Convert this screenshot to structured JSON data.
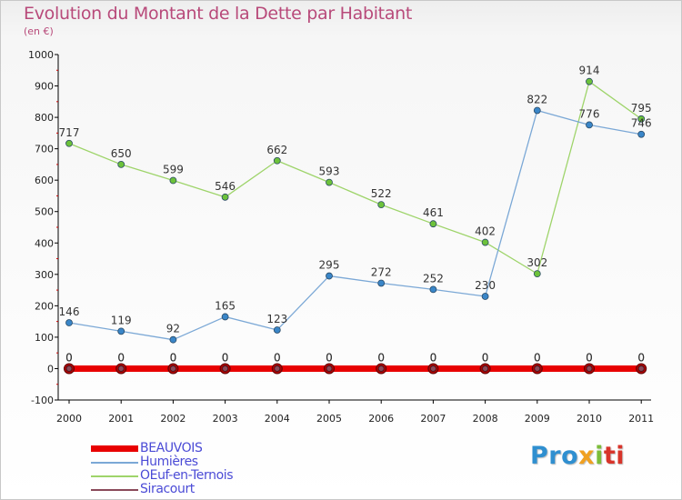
{
  "title": "Evolution du Montant de la Dette par Habitant",
  "subtitle": "(en €)",
  "logo": [
    "Pro",
    "x",
    "i",
    "ti"
  ],
  "colors": {
    "title": "#b84a7a",
    "legend_text": "#4b4bd6"
  },
  "chart_data": {
    "type": "line",
    "title": "Evolution du Montant de la Dette par Habitant",
    "ylabel": "(en €)",
    "xlabel": "",
    "x": [
      "2000",
      "2001",
      "2002",
      "2003",
      "2004",
      "2005",
      "2006",
      "2007",
      "2008",
      "2009",
      "2010",
      "2011"
    ],
    "ylim": [
      -100,
      1000
    ],
    "yticks": [
      "-100",
      "0",
      "100",
      "200",
      "300",
      "400",
      "500",
      "600",
      "700",
      "800",
      "900",
      "1000"
    ],
    "grid": false,
    "legend_position": "bottom-left",
    "series": [
      {
        "name": "BEAUVOIS",
        "color": "#e80000",
        "marker": "#e00000",
        "values": [
          0,
          0,
          0,
          0,
          0,
          0,
          0,
          0,
          0,
          0,
          0,
          0
        ],
        "labels": [
          "0",
          "0",
          "0",
          "0",
          "0",
          "0",
          "0",
          "0",
          "0",
          "0",
          "0",
          "0"
        ]
      },
      {
        "name": "Humières",
        "color": "#7ba8d6",
        "marker": "#3a86c8",
        "values": [
          146,
          119,
          92,
          165,
          123,
          295,
          272,
          252,
          230,
          822,
          776,
          746
        ],
        "labels": [
          "146",
          "119",
          "92",
          "165",
          "123",
          "295",
          "272",
          "252",
          "230",
          "822",
          "776",
          "746"
        ]
      },
      {
        "name": "OEuf-en-Ternois",
        "color": "#9ed46a",
        "marker": "#6cc23a",
        "values": [
          717,
          650,
          599,
          546,
          662,
          593,
          522,
          461,
          402,
          302,
          914,
          795
        ],
        "labels": [
          "717",
          "650",
          "599",
          "546",
          "662",
          "593",
          "522",
          "461",
          "402",
          "302",
          "914",
          "795"
        ]
      },
      {
        "name": "Siracourt",
        "color": "#8a4a5a",
        "marker": "#8a4a5a",
        "values": [
          0,
          0,
          0,
          0,
          0,
          0,
          0,
          0,
          0,
          0,
          0,
          0
        ],
        "labels": [
          "0",
          "0",
          "0",
          "0",
          "0",
          "0",
          "0",
          "0",
          "0",
          "0",
          "0",
          "0"
        ]
      }
    ]
  }
}
